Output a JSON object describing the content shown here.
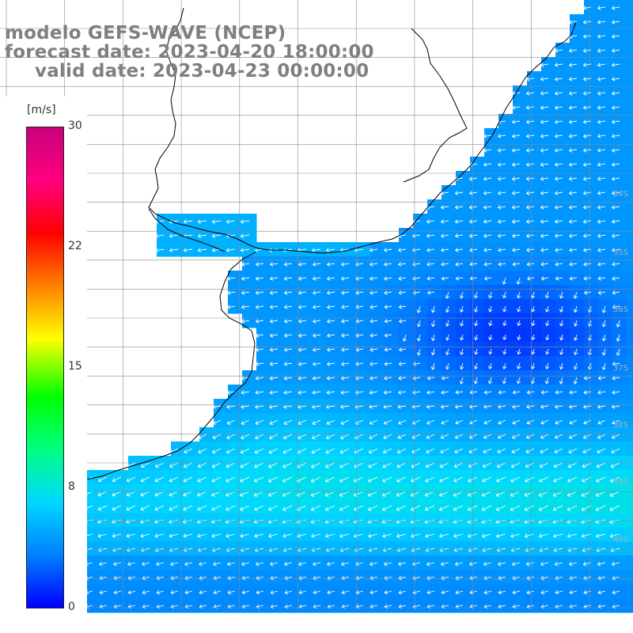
{
  "title": {
    "line1": "modelo GEFS-WAVE (NCEP)",
    "line2": "forecast date: 2023-04-20 18:00:00",
    "line3": "valid date: 2023-04-23 00:00:00"
  },
  "colorbar": {
    "unit": "[m/s]",
    "ticks": [
      "30",
      "22",
      "15",
      "8",
      "0"
    ],
    "min": 0,
    "max": 30,
    "colors": [
      "#0000ff",
      "#0080ff",
      "#00d8ff",
      "#00ff80",
      "#00ff00",
      "#ffff00",
      "#ff8000",
      "#ff0000",
      "#ff0080",
      "#c8007a"
    ]
  },
  "latitude_labels": [
    "34S",
    "35S",
    "36S",
    "37S",
    "38S",
    "39S",
    "40S"
  ],
  "wind_field": {
    "variable": "wind speed and direction",
    "general_direction": "from east/southeast toward west/northwest",
    "speed_range_ms": [
      1,
      9
    ],
    "weakest_region": "offshore east-central (about 36S–37S)",
    "strongest_region": "southern band (about 38S–40S)"
  },
  "colors": {
    "land": "#ffffff",
    "coastline": "#000000",
    "grid": "#8a8a8a",
    "title_text": "#7f7f7f"
  }
}
